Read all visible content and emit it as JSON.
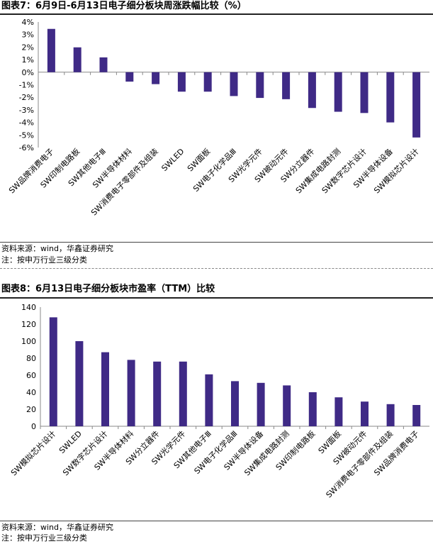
{
  "chart_data": [
    {
      "type": "bar",
      "title": "图表7：6月9日-6月13日电子细分板块周涨跌幅比较（%）",
      "categories": [
        "SW品牌消费电子",
        "SW印制电路板",
        "SW其他电子Ⅲ",
        "SW半导体材料",
        "SW消费电子零部件及组装",
        "SWLED",
        "SW面板",
        "SW电子化学品Ⅲ",
        "SW光学元件",
        "SW被动元件",
        "SW分立器件",
        "SW集成电路封测",
        "SW数字芯片设计",
        "SW半导体设备",
        "SW模拟芯片设计"
      ],
      "values": [
        3.45,
        1.98,
        1.18,
        -0.75,
        -0.95,
        -1.55,
        -1.55,
        -1.9,
        -2.05,
        -2.15,
        -2.85,
        -3.15,
        -3.25,
        -4.0,
        -5.2
      ],
      "yticks": [
        "4%",
        "3%",
        "2%",
        "1%",
        "0%",
        "-1%",
        "-2%",
        "-3%",
        "-4%",
        "-5%",
        "-6%"
      ],
      "ylim": [
        -6,
        4
      ],
      "color": "#3f2a86",
      "source": "资料来源：wind，华鑫证券研究",
      "note": "注：按申万行业三级分类"
    },
    {
      "type": "bar",
      "title": "图表8：6月13日电子细分板块市盈率（TTM）比较",
      "categories": [
        "SW模拟芯片设计",
        "SWLED",
        "SW数字芯片设计",
        "SW半导体材料",
        "SW分立器件",
        "SW光学元件",
        "SW其他电子Ⅲ",
        "SW电子化学品Ⅲ",
        "SW半导体设备",
        "SW集成电路封测",
        "SW印制电路板",
        "SW面板",
        "SW被动元件",
        "SW消费电子零部件及组装",
        "SW品牌消费电子"
      ],
      "values": [
        128,
        100,
        87,
        78,
        76,
        76,
        61,
        53,
        51,
        48,
        40,
        34,
        29,
        26,
        25
      ],
      "yticks": [
        "140",
        "120",
        "100",
        "80",
        "60",
        "40",
        "20",
        "0"
      ],
      "ylim": [
        0,
        140
      ],
      "color": "#3f2a86",
      "source": "资料来源：wind，华鑫证券研究",
      "note": "注：按申万行业三级分类"
    }
  ]
}
